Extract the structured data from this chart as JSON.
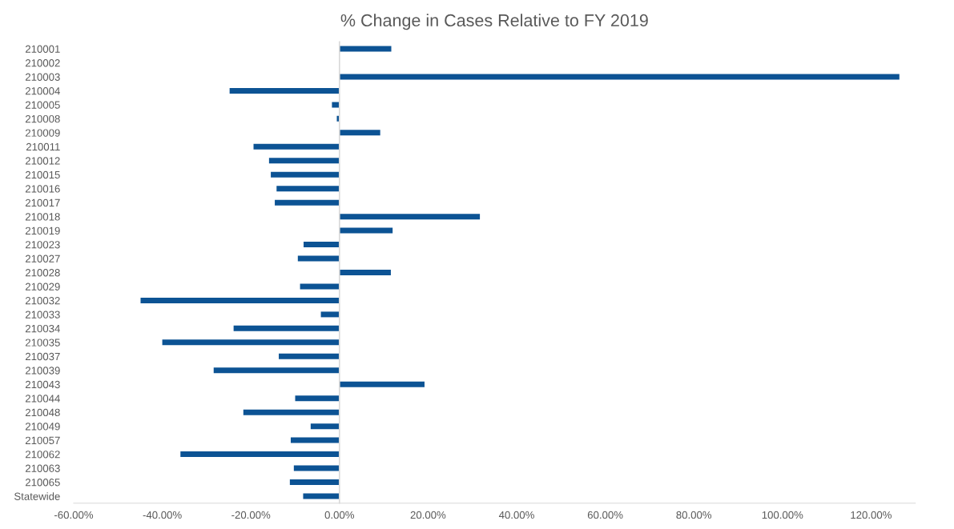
{
  "chart_data": {
    "type": "bar",
    "orientation": "horizontal",
    "title": "% Change in Cases Relative to FY 2019",
    "categories": [
      "210001",
      "210002",
      "210003",
      "210004",
      "210005",
      "210008",
      "210009",
      "210011",
      "210012",
      "210015",
      "210016",
      "210017",
      "210018",
      "210019",
      "210023",
      "210027",
      "210028",
      "210029",
      "210032",
      "210033",
      "210034",
      "210035",
      "210037",
      "210039",
      "210043",
      "210044",
      "210048",
      "210049",
      "210057",
      "210062",
      "210063",
      "210065",
      "Statewide"
    ],
    "values": [
      11.7,
      0,
      126.4,
      -24.8,
      -1.7,
      -0.6,
      9.2,
      -19.4,
      -15.9,
      -15.5,
      -14.2,
      -14.6,
      31.7,
      12.0,
      -8.1,
      -9.4,
      11.6,
      -8.9,
      -44.9,
      -4.2,
      -23.9,
      -40.0,
      -13.7,
      -28.4,
      19.2,
      -10.0,
      -21.7,
      -6.5,
      -11.0,
      -35.9,
      -10.3,
      -11.2,
      -8.2
    ],
    "color": "#0c5394",
    "xlim": [
      -60,
      130
    ],
    "xticks": [
      {
        "value": -60,
        "label": "-60.00%"
      },
      {
        "value": -40,
        "label": "-40.00%"
      },
      {
        "value": -20,
        "label": "-20.00%"
      },
      {
        "value": 0,
        "label": "0.00%"
      },
      {
        "value": 20,
        "label": "20.00%"
      },
      {
        "value": 40,
        "label": "40.00%"
      },
      {
        "value": 60,
        "label": "60.00%"
      },
      {
        "value": 80,
        "label": "80.00%"
      },
      {
        "value": 100,
        "label": "100.00%"
      },
      {
        "value": 120,
        "label": "120.00%"
      }
    ]
  }
}
